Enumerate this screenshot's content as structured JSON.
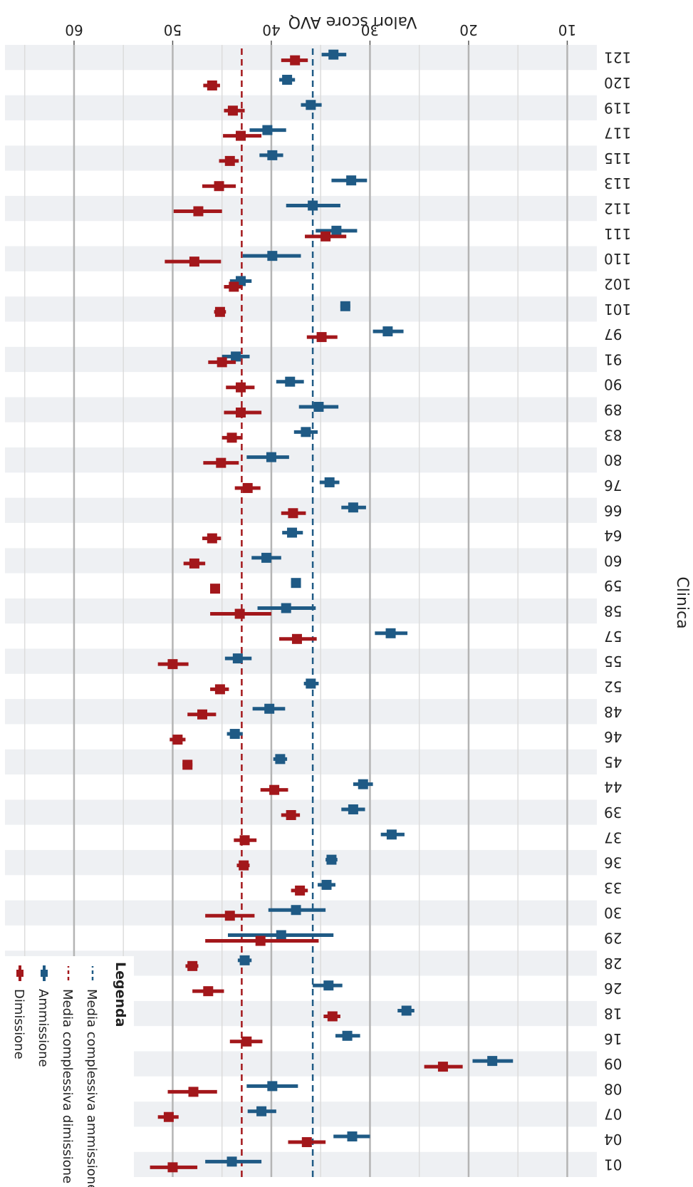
{
  "chart_data": {
    "type": "forest-errorbar",
    "rotation": "rendered rotated 180 degrees",
    "xlabel": "Clinica",
    "ylabel": "Valori score AVQ",
    "ylim": [
      7,
      67
    ],
    "yticks": [
      10,
      20,
      30,
      40,
      50,
      60
    ],
    "grid": true,
    "legend_position": "bottom-left",
    "legend": {
      "title": "Legenda",
      "items": [
        {
          "label": "Media complessiva ammissione",
          "style": "dashed",
          "color": "#1f5a85"
        },
        {
          "label": "Media complessiva dimissione",
          "style": "dashed",
          "color": "#a3171b"
        },
        {
          "label": "Ammissione",
          "style": "point",
          "color": "#1f5a85"
        },
        {
          "label": "Dimissione",
          "style": "point",
          "color": "#a3171b"
        }
      ]
    },
    "reference_lines": [
      {
        "name": "Media complessiva ammissione",
        "value": 35.8,
        "color": "#1f5a85"
      },
      {
        "name": "Media complessiva dimissione",
        "value": 43.0,
        "color": "#a3171b"
      }
    ],
    "categories": [
      "01",
      "04",
      "07",
      "08",
      "09",
      "16",
      "18",
      "26",
      "28",
      "29",
      "30",
      "33",
      "36",
      "37",
      "39",
      "44",
      "45",
      "46",
      "48",
      "52",
      "55",
      "57",
      "58",
      "59",
      "60",
      "64",
      "66",
      "76",
      "80",
      "83",
      "89",
      "90",
      "91",
      "97",
      "101",
      "102",
      "110",
      "111",
      "112",
      "113",
      "115",
      "117",
      "119",
      "120",
      "121"
    ],
    "series": [
      {
        "name": "Ammissione",
        "color": "#1f5a85",
        "values": [
          44.0,
          31.8,
          41.0,
          39.9,
          17.6,
          32.3,
          26.3,
          34.2,
          42.7,
          39.0,
          37.5,
          34.4,
          33.9,
          27.8,
          31.7,
          30.7,
          39.1,
          43.7,
          40.2,
          36.0,
          43.4,
          27.9,
          38.5,
          37.5,
          40.5,
          37.9,
          31.7,
          34.1,
          40.0,
          36.5,
          35.2,
          38.1,
          43.6,
          28.2,
          32.5,
          43.1,
          39.9,
          33.4,
          35.8,
          31.9,
          39.9,
          40.4,
          36.0,
          38.4,
          33.7
        ],
        "lower": [
          41.0,
          30.0,
          39.5,
          37.3,
          15.5,
          31.0,
          25.5,
          32.8,
          42.0,
          33.7,
          34.5,
          33.5,
          33.3,
          26.5,
          30.5,
          29.7,
          38.4,
          42.9,
          38.6,
          35.2,
          42.0,
          26.2,
          35.5,
          37.0,
          39.0,
          36.8,
          30.4,
          33.1,
          38.2,
          35.3,
          33.2,
          36.7,
          42.2,
          26.6,
          32.0,
          42.0,
          37.0,
          31.3,
          33.0,
          30.3,
          38.8,
          38.5,
          34.9,
          37.6,
          32.4
        ],
        "upper": [
          46.7,
          33.7,
          42.4,
          42.5,
          19.6,
          33.5,
          27.2,
          35.8,
          43.4,
          44.4,
          40.3,
          35.3,
          34.5,
          28.9,
          32.9,
          31.7,
          39.8,
          44.5,
          41.9,
          36.7,
          44.7,
          29.5,
          41.4,
          38.0,
          42.0,
          38.9,
          32.9,
          35.1,
          42.5,
          37.7,
          37.2,
          39.5,
          45.0,
          29.7,
          33.0,
          44.2,
          42.9,
          35.5,
          38.5,
          33.9,
          41.2,
          42.2,
          37.0,
          39.2,
          34.9
        ]
      },
      {
        "name": "Dimissione",
        "color": "#a3171b",
        "values": [
          50.0,
          36.4,
          50.4,
          47.9,
          22.6,
          42.5,
          33.8,
          46.4,
          48.0,
          41.1,
          44.2,
          37.1,
          42.8,
          42.7,
          38.0,
          39.7,
          48.5,
          49.5,
          47.0,
          45.2,
          50.0,
          37.4,
          43.2,
          45.7,
          47.8,
          46.0,
          37.8,
          42.4,
          45.1,
          44.0,
          43.1,
          43.1,
          45.0,
          34.9,
          45.2,
          43.8,
          47.8,
          34.5,
          47.4,
          45.3,
          44.2,
          43.1,
          43.9,
          46.0,
          37.6
        ],
        "lower": [
          47.5,
          34.5,
          49.4,
          45.5,
          20.6,
          40.9,
          33.0,
          44.8,
          47.4,
          35.2,
          41.7,
          36.3,
          42.2,
          41.5,
          37.1,
          38.3,
          48.0,
          48.7,
          45.6,
          44.3,
          48.4,
          35.4,
          40.0,
          45.3,
          46.7,
          45.1,
          36.5,
          41.1,
          43.3,
          43.0,
          41.0,
          41.7,
          43.6,
          33.3,
          44.6,
          42.9,
          45.1,
          32.4,
          45.0,
          43.6,
          43.3,
          41.0,
          42.7,
          45.2,
          36.3
        ],
        "upper": [
          52.3,
          38.3,
          51.5,
          50.5,
          24.5,
          44.2,
          34.7,
          48.0,
          48.7,
          46.7,
          46.7,
          38.0,
          43.5,
          43.8,
          39.0,
          41.1,
          49.0,
          50.3,
          48.5,
          46.2,
          51.5,
          39.2,
          46.2,
          46.2,
          48.9,
          47.0,
          39.0,
          43.7,
          46.9,
          45.0,
          44.8,
          44.6,
          46.4,
          36.4,
          45.8,
          44.8,
          50.8,
          36.6,
          49.9,
          47.0,
          45.3,
          44.9,
          44.8,
          46.9,
          39.0
        ]
      }
    ]
  }
}
